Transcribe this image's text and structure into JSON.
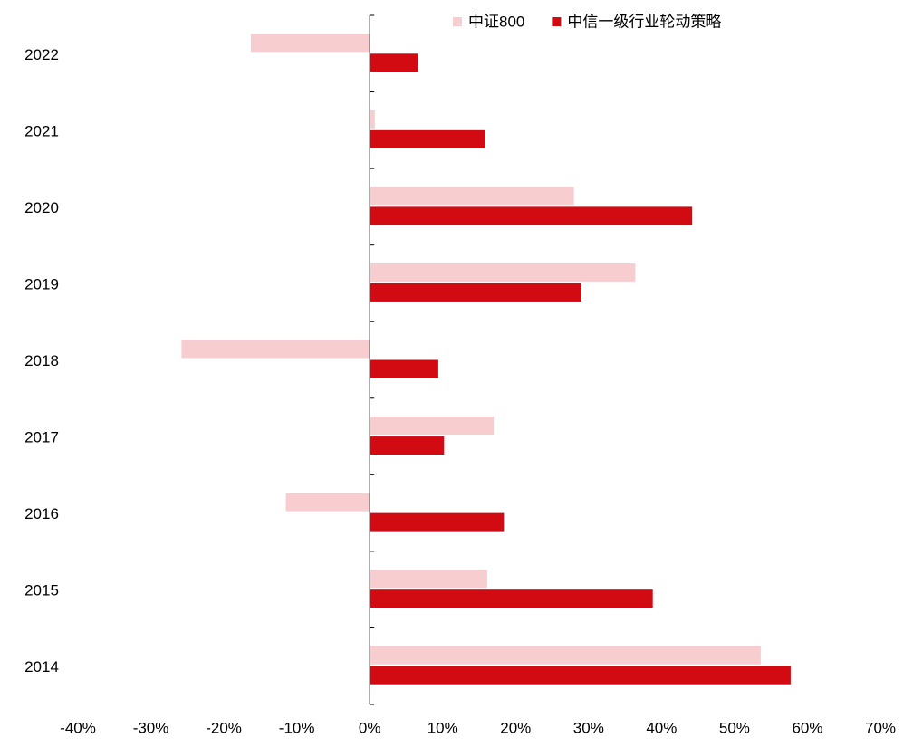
{
  "chart_data": {
    "type": "bar",
    "orientation": "horizontal",
    "categories": [
      "2022",
      "2021",
      "2020",
      "2019",
      "2018",
      "2017",
      "2016",
      "2015",
      "2014"
    ],
    "series": [
      {
        "name": "中证800",
        "color": "#f7cdd0",
        "values": [
          -16.3,
          0.7,
          28.0,
          36.4,
          -25.8,
          17.0,
          -11.5,
          16.1,
          53.6
        ]
      },
      {
        "name": "中信一级行业轮动策略",
        "color": "#d20a11",
        "values": [
          6.6,
          15.8,
          44.2,
          29.0,
          9.4,
          10.2,
          18.4,
          38.8,
          57.7
        ]
      }
    ],
    "xlim": [
      -40,
      70
    ],
    "xticks": [
      {
        "value": -40,
        "label": "-40%"
      },
      {
        "value": -30,
        "label": "-30%"
      },
      {
        "value": -20,
        "label": "-20%"
      },
      {
        "value": -10,
        "label": "-10%"
      },
      {
        "value": 0,
        "label": "0%"
      },
      {
        "value": 10,
        "label": "10%"
      },
      {
        "value": 20,
        "label": "20%"
      },
      {
        "value": 30,
        "label": "30%"
      },
      {
        "value": 40,
        "label": "40%"
      },
      {
        "value": 50,
        "label": "50%"
      },
      {
        "value": 60,
        "label": "60%"
      },
      {
        "value": 70,
        "label": "70%"
      }
    ],
    "grid": false,
    "legend": "top"
  }
}
